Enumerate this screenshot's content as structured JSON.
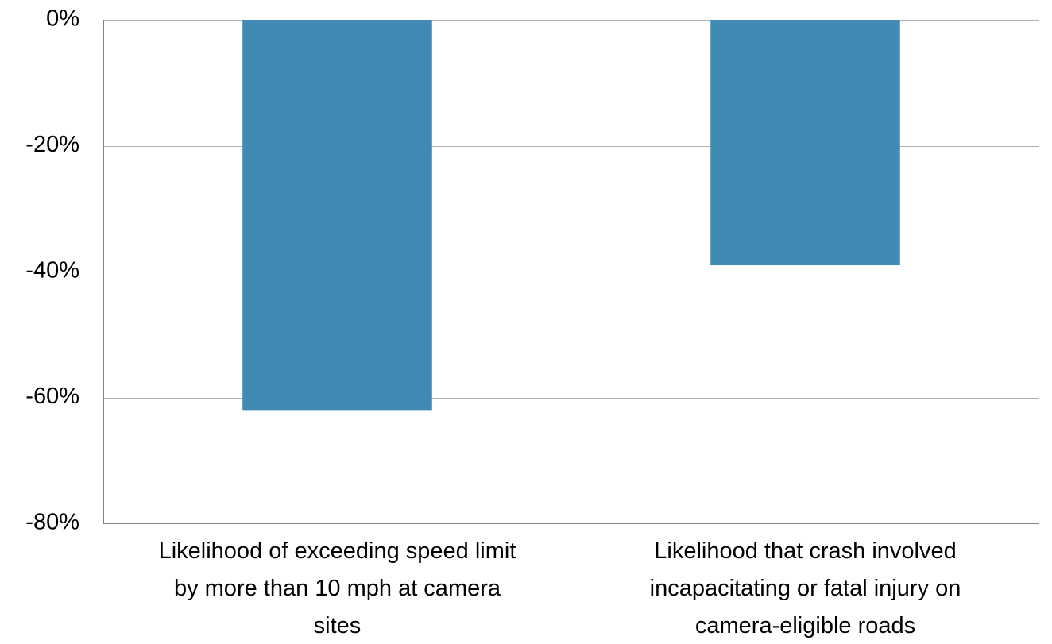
{
  "chart_data": {
    "type": "bar",
    "categories": [
      "Likelihood of exceeding speed limit by more than 10 mph at camera sites",
      "Likelihood that crash involved incapacitating or fatal injury on camera-eligible roads"
    ],
    "category_label_lines": [
      [
        "Likelihood of exceeding speed limit",
        "by more than 10 mph at camera",
        "sites"
      ],
      [
        "Likelihood that crash involved",
        "incapacitating or fatal injury on",
        "camera-eligible roads"
      ]
    ],
    "values": [
      -62,
      -39
    ],
    "value_unit": "%",
    "ylim": [
      -80,
      0
    ],
    "yticks": [
      0,
      -20,
      -40,
      -60,
      -80
    ],
    "ytick_labels": [
      "0%",
      "-20%",
      "-40%",
      "-60%",
      "-80%"
    ],
    "title": "",
    "xlabel": "",
    "ylabel": "",
    "grid": true,
    "legend": "none",
    "bar_color": "#418AB3",
    "gridline_color": "#B0B0B0",
    "axis_color": "#808080"
  }
}
